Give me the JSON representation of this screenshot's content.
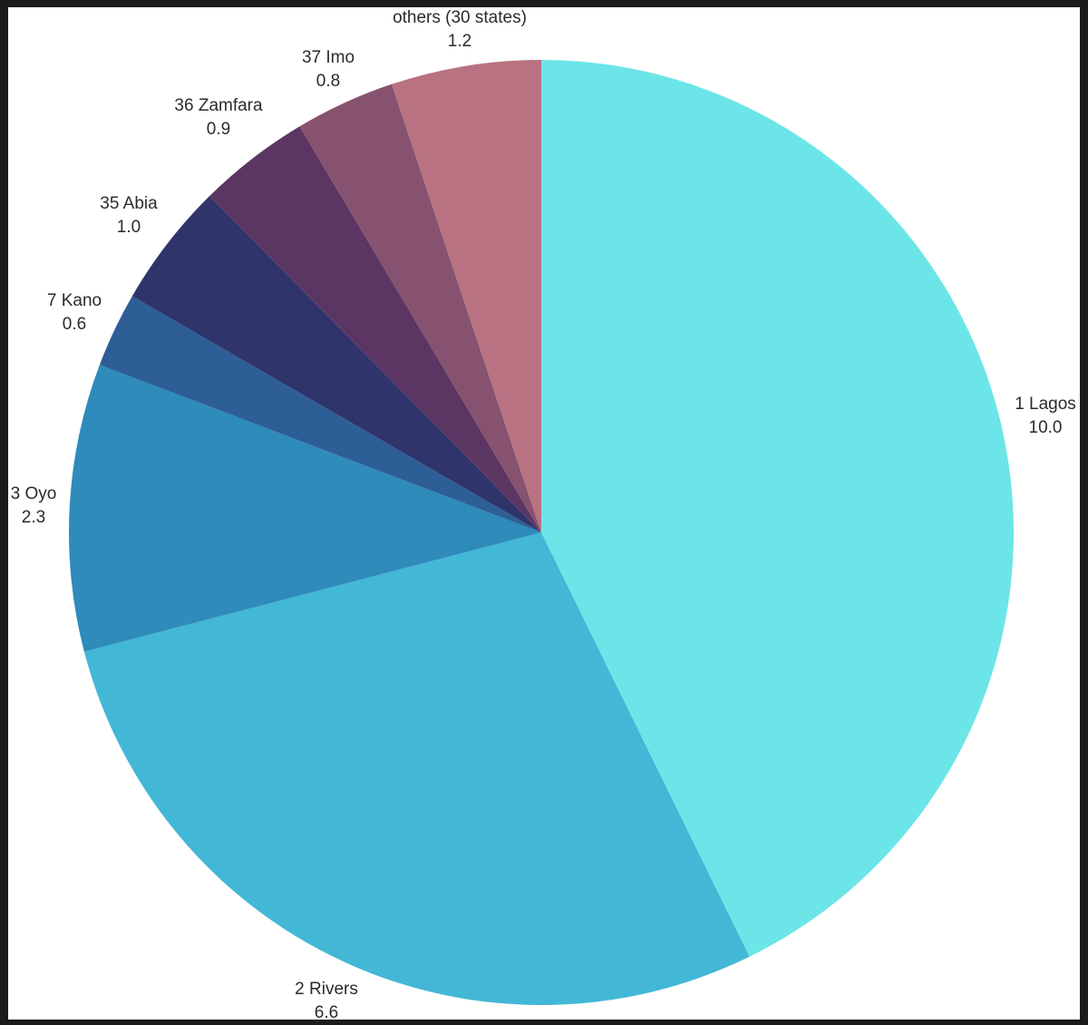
{
  "chart_data": {
    "type": "pie",
    "title": "",
    "start_angle_deg": 0,
    "direction": "clockwise",
    "legend": "none",
    "slices": [
      {
        "label": "1 Lagos",
        "value": 10.0,
        "value_text": "10.0",
        "color": "#6ce5e8"
      },
      {
        "label": "2 Rivers",
        "value": 6.6,
        "value_text": "6.6",
        "color": "#43b7d6"
      },
      {
        "label": "3 Oyo",
        "value": 2.3,
        "value_text": "2.3",
        "color": "#2e8bba"
      },
      {
        "label": "7 Kano",
        "value": 0.6,
        "value_text": "0.6",
        "color": "#2d5e96"
      },
      {
        "label": "35 Abia",
        "value": 1.0,
        "value_text": "1.0",
        "color": "#2f346b"
      },
      {
        "label": "36 Zamfara",
        "value": 0.9,
        "value_text": "0.9",
        "color": "#5c3663"
      },
      {
        "label": "37 Imo",
        "value": 0.8,
        "value_text": "0.8",
        "color": "#87526f"
      },
      {
        "label": "others (30 states)",
        "value": 1.2,
        "value_text": "1.2",
        "color": "#b87282"
      }
    ]
  }
}
